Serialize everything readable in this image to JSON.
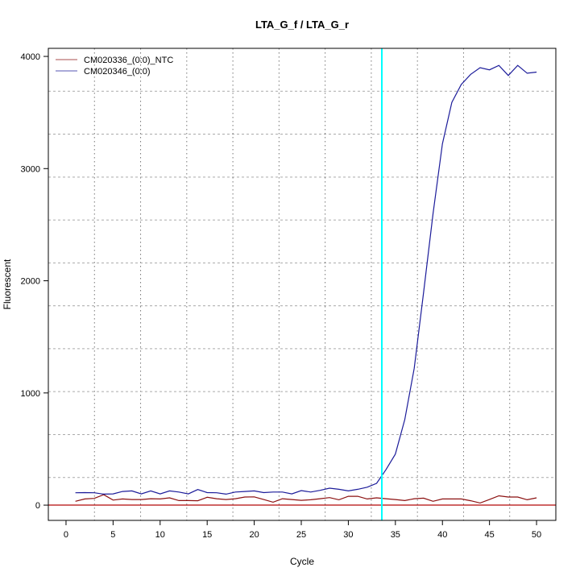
{
  "chart_data": {
    "type": "line",
    "title": "LTA_G_f / LTA_G_r",
    "xlabel": "Cycle",
    "ylabel": "Fluorescent",
    "xlim": [
      -1.88,
      52.05
    ],
    "ylim": [
      -136,
      4072
    ],
    "xticks": [
      0,
      5,
      10,
      15,
      20,
      25,
      30,
      35,
      40,
      45,
      50
    ],
    "yticks": [
      0,
      1000,
      2000,
      3000,
      4000
    ],
    "grid": true,
    "legend_position": "top-left",
    "threshold_cycle": 33.56,
    "baseline_value": 0,
    "colors": {
      "threshold": "#00ffff",
      "baseline": "#c03030"
    },
    "x": [
      1,
      2,
      3,
      4,
      5,
      6,
      7,
      8,
      9,
      10,
      11,
      12,
      13,
      14,
      15,
      16,
      17,
      18,
      19,
      20,
      21,
      22,
      23,
      24,
      25,
      26,
      27,
      28,
      29,
      30,
      31,
      32,
      33,
      34,
      35,
      36,
      37,
      38,
      39,
      40,
      41,
      42,
      43,
      44,
      45,
      46,
      47,
      48,
      49,
      50
    ],
    "series": [
      {
        "name": "CM020336_(0:0)_NTC",
        "color": "#8b1010",
        "values": [
          34,
          55,
          60,
          93,
          45,
          55,
          50,
          50,
          57,
          55,
          65,
          41,
          41,
          39,
          70,
          57,
          50,
          57,
          72,
          74,
          50,
          26,
          57,
          50,
          43,
          48,
          57,
          67,
          48,
          79,
          79,
          55,
          65,
          57,
          50,
          41,
          57,
          62,
          34,
          55,
          55,
          55,
          39,
          19,
          50,
          83,
          72,
          72,
          48,
          65
        ]
      },
      {
        "name": "CM020346_(0:0)",
        "color": "#1c1c9a",
        "values": [
          110,
          112,
          110,
          98,
          100,
          122,
          127,
          100,
          127,
          100,
          127,
          117,
          100,
          139,
          112,
          110,
          98,
          117,
          122,
          127,
          112,
          117,
          117,
          100,
          130,
          117,
          132,
          151,
          141,
          127,
          141,
          160,
          194,
          316,
          455,
          763,
          1220,
          1900,
          2600,
          3220,
          3590,
          3750,
          3840,
          3900,
          3880,
          3920,
          3830,
          3920,
          3850,
          3860
        ]
      }
    ]
  }
}
